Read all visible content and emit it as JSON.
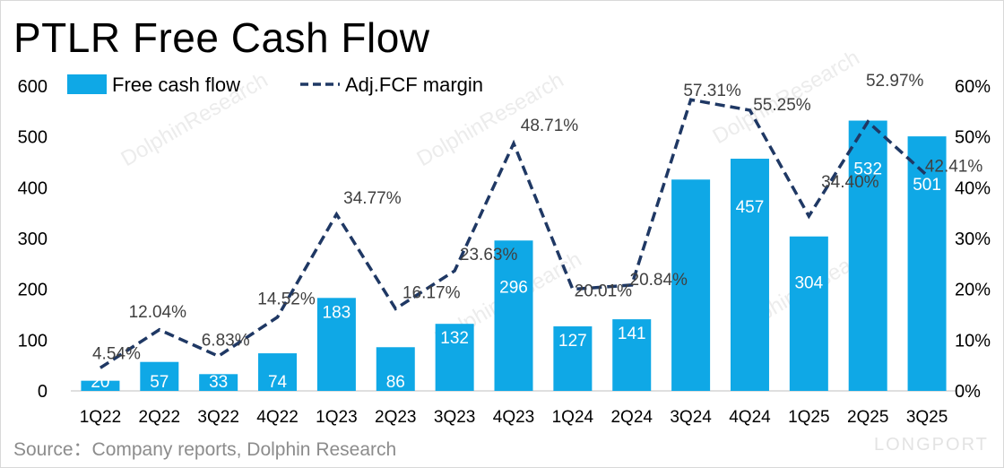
{
  "title": "PTLR Free Cash Flow",
  "source": "Source：Company reports, Dolphin Research",
  "watermark": {
    "text": "DolphinResearch",
    "brand": "LONGPORT"
  },
  "chart_data": {
    "type": "bar",
    "categories": [
      "1Q22",
      "2Q22",
      "3Q22",
      "4Q22",
      "1Q23",
      "2Q23",
      "3Q23",
      "4Q23",
      "1Q24",
      "2Q24",
      "3Q24",
      "4Q24",
      "1Q25",
      "2Q25",
      "3Q25"
    ],
    "series": [
      {
        "name": "Free cash flow",
        "type": "bar",
        "axis": "left",
        "color": "#0fa8e6",
        "values": [
          20,
          57,
          33,
          74,
          183,
          86,
          132,
          296,
          127,
          141,
          416,
          457,
          304,
          532,
          501
        ],
        "labels": [
          "20",
          "57",
          "33",
          "74",
          "183",
          "86",
          "132",
          "296",
          "127",
          "141",
          "",
          "457",
          "304",
          "532",
          "501"
        ]
      },
      {
        "name": "Adj.FCF margin",
        "type": "line",
        "style": "dashed",
        "axis": "right",
        "color": "#1f3864",
        "values": [
          4.54,
          12.04,
          6.83,
          14.52,
          34.77,
          16.17,
          23.63,
          48.71,
          20.01,
          20.84,
          57.31,
          55.25,
          34.4,
          52.97,
          42.41
        ],
        "labels": [
          "4.54%",
          "12.04%",
          "6.83%",
          "14.52%",
          "34.77%",
          "16.17%",
          "23.63%",
          "48.71%",
          "20.01%",
          "20.84%",
          "57.31%",
          "55.25%",
          "34.40%",
          "52.97%",
          "42.41%"
        ]
      }
    ],
    "left_axis": {
      "ylim": [
        0,
        600
      ],
      "ticks": [
        "0",
        "100",
        "200",
        "300",
        "400",
        "500",
        "600"
      ]
    },
    "right_axis": {
      "ylim": [
        0,
        60
      ],
      "ticks": [
        "0%",
        "10%",
        "20%",
        "30%",
        "40%",
        "50%",
        "60%"
      ]
    },
    "legend": {
      "position": "top-left",
      "items": [
        "Free cash flow",
        "Adj.FCF margin"
      ]
    },
    "grid": false
  }
}
